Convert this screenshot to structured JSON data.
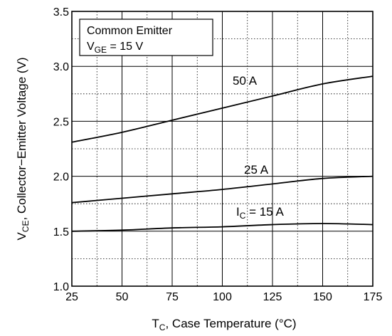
{
  "chart_data": {
    "type": "line",
    "xlabel": "T",
    "xlabel_sub": "C",
    "xlabel_rest": ", Case Temperature (°C)",
    "ylabel": "V",
    "ylabel_sub": "CE",
    "ylabel_rest": ", Collector−Emitter Voltage (V)",
    "xlim": [
      25,
      175
    ],
    "ylim": [
      1.0,
      3.5
    ],
    "x_ticks": [
      "25",
      "50",
      "75",
      "100",
      "125",
      "150",
      "175"
    ],
    "y_ticks": [
      "1.0",
      "1.5",
      "2.0",
      "2.5",
      "3.0",
      "3.5"
    ],
    "grid": true,
    "annotation_box": {
      "line1": "Common Emitter",
      "line2_main": "V",
      "line2_sub": "GE",
      "line2_rest": " = 15 V"
    },
    "series": [
      {
        "name": "50 A",
        "x": [
          25,
          50,
          75,
          100,
          125,
          150,
          175
        ],
        "y": [
          2.31,
          2.4,
          2.51,
          2.62,
          2.73,
          2.84,
          2.91
        ]
      },
      {
        "name": "25 A",
        "x": [
          25,
          50,
          75,
          100,
          125,
          150,
          175
        ],
        "y": [
          1.76,
          1.8,
          1.84,
          1.88,
          1.93,
          1.98,
          2.0
        ]
      },
      {
        "name_main": "I",
        "name_sub": "C",
        "name_rest": " = 15 A",
        "x": [
          25,
          50,
          75,
          100,
          125,
          150,
          175
        ],
        "y": [
          1.5,
          1.51,
          1.53,
          1.54,
          1.56,
          1.57,
          1.56
        ]
      }
    ]
  }
}
